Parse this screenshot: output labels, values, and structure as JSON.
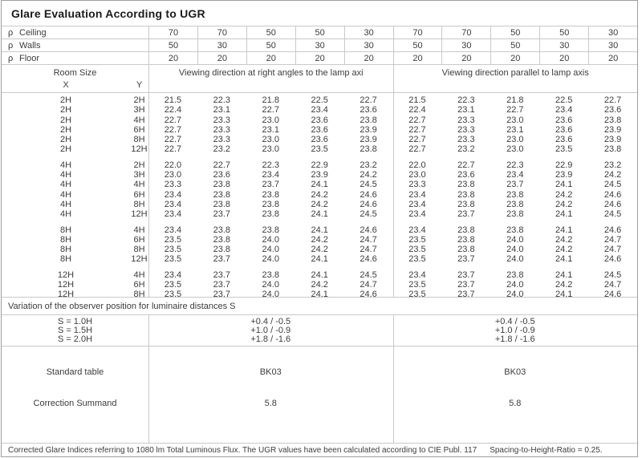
{
  "title": "Glare Evaluation According to UGR",
  "reflectances": {
    "rho": "ρ",
    "rows": [
      {
        "label": "Ceiling",
        "values": [
          "70",
          "70",
          "50",
          "50",
          "30",
          "70",
          "70",
          "50",
          "50",
          "30"
        ]
      },
      {
        "label": "Walls",
        "values": [
          "50",
          "30",
          "50",
          "30",
          "30",
          "50",
          "30",
          "50",
          "30",
          "30"
        ]
      },
      {
        "label": "Floor",
        "values": [
          "20",
          "20",
          "20",
          "20",
          "20",
          "20",
          "20",
          "20",
          "20",
          "20"
        ]
      }
    ]
  },
  "header": {
    "room_size": "Room Size",
    "x": "X",
    "y": "Y",
    "group1": "Viewing direction at right angles to the lamp axi",
    "group2": "Viewing direction parallel to lamp axis"
  },
  "ugr_blocks": [
    {
      "rows": [
        {
          "x": "2H",
          "y": "2H",
          "ra": [
            "21.5",
            "22.3",
            "21.8",
            "22.5",
            "22.7"
          ],
          "pa": [
            "21.5",
            "22.3",
            "21.8",
            "22.5",
            "22.7"
          ]
        },
        {
          "x": "2H",
          "y": "3H",
          "ra": [
            "22.4",
            "23.1",
            "22.7",
            "23.4",
            "23.6"
          ],
          "pa": [
            "22.4",
            "23.1",
            "22.7",
            "23.4",
            "23.6"
          ]
        },
        {
          "x": "2H",
          "y": "4H",
          "ra": [
            "22.7",
            "23.3",
            "23.0",
            "23.6",
            "23.8"
          ],
          "pa": [
            "22.7",
            "23.3",
            "23.0",
            "23.6",
            "23.8"
          ]
        },
        {
          "x": "2H",
          "y": "6H",
          "ra": [
            "22.7",
            "23.3",
            "23.1",
            "23.6",
            "23.9"
          ],
          "pa": [
            "22.7",
            "23.3",
            "23.1",
            "23.6",
            "23.9"
          ]
        },
        {
          "x": "2H",
          "y": "8H",
          "ra": [
            "22.7",
            "23.3",
            "23.0",
            "23.6",
            "23.9"
          ],
          "pa": [
            "22.7",
            "23.3",
            "23.0",
            "23.6",
            "23.9"
          ]
        },
        {
          "x": "2H",
          "y": "12H",
          "ra": [
            "22.7",
            "23.2",
            "23.0",
            "23.5",
            "23.8"
          ],
          "pa": [
            "22.7",
            "23.2",
            "23.0",
            "23.5",
            "23.8"
          ]
        }
      ]
    },
    {
      "rows": [
        {
          "x": "4H",
          "y": "2H",
          "ra": [
            "22.0",
            "22.7",
            "22.3",
            "22.9",
            "23.2"
          ],
          "pa": [
            "22.0",
            "22.7",
            "22.3",
            "22.9",
            "23.2"
          ]
        },
        {
          "x": "4H",
          "y": "3H",
          "ra": [
            "23.0",
            "23.6",
            "23.4",
            "23.9",
            "24.2"
          ],
          "pa": [
            "23.0",
            "23.6",
            "23.4",
            "23.9",
            "24.2"
          ]
        },
        {
          "x": "4H",
          "y": "4H",
          "ra": [
            "23.3",
            "23.8",
            "23.7",
            "24.1",
            "24.5"
          ],
          "pa": [
            "23.3",
            "23.8",
            "23.7",
            "24.1",
            "24.5"
          ]
        },
        {
          "x": "4H",
          "y": "6H",
          "ra": [
            "23.4",
            "23.8",
            "23.8",
            "24.2",
            "24.6"
          ],
          "pa": [
            "23.4",
            "23.8",
            "23.8",
            "24.2",
            "24.6"
          ]
        },
        {
          "x": "4H",
          "y": "8H",
          "ra": [
            "23.4",
            "23.8",
            "23.8",
            "24.2",
            "24.6"
          ],
          "pa": [
            "23.4",
            "23.8",
            "23.8",
            "24.2",
            "24.6"
          ]
        },
        {
          "x": "4H",
          "y": "12H",
          "ra": [
            "23.4",
            "23.7",
            "23.8",
            "24.1",
            "24.5"
          ],
          "pa": [
            "23.4",
            "23.7",
            "23.8",
            "24.1",
            "24.5"
          ]
        }
      ]
    },
    {
      "rows": [
        {
          "x": "8H",
          "y": "4H",
          "ra": [
            "23.4",
            "23.8",
            "23.8",
            "24.1",
            "24.6"
          ],
          "pa": [
            "23.4",
            "23.8",
            "23.8",
            "24.1",
            "24.6"
          ]
        },
        {
          "x": "8H",
          "y": "6H",
          "ra": [
            "23.5",
            "23.8",
            "24.0",
            "24.2",
            "24.7"
          ],
          "pa": [
            "23.5",
            "23.8",
            "24.0",
            "24.2",
            "24.7"
          ]
        },
        {
          "x": "8H",
          "y": "8H",
          "ra": [
            "23.5",
            "23.8",
            "24.0",
            "24.2",
            "24.7"
          ],
          "pa": [
            "23.5",
            "23.8",
            "24.0",
            "24.2",
            "24.7"
          ]
        },
        {
          "x": "8H",
          "y": "12H",
          "ra": [
            "23.5",
            "23.7",
            "24.0",
            "24.1",
            "24.6"
          ],
          "pa": [
            "23.5",
            "23.7",
            "24.0",
            "24.1",
            "24.6"
          ]
        }
      ]
    },
    {
      "rows": [
        {
          "x": "12H",
          "y": "4H",
          "ra": [
            "23.4",
            "23.7",
            "23.8",
            "24.1",
            "24.5"
          ],
          "pa": [
            "23.4",
            "23.7",
            "23.8",
            "24.1",
            "24.5"
          ]
        },
        {
          "x": "12H",
          "y": "6H",
          "ra": [
            "23.5",
            "23.7",
            "24.0",
            "24.2",
            "24.7"
          ],
          "pa": [
            "23.5",
            "23.7",
            "24.0",
            "24.2",
            "24.7"
          ]
        },
        {
          "x": "12H",
          "y": "8H",
          "ra": [
            "23.5",
            "23.7",
            "24.0",
            "24.1",
            "24.6"
          ],
          "pa": [
            "23.5",
            "23.7",
            "24.0",
            "24.1",
            "24.6"
          ]
        }
      ]
    }
  ],
  "variation_note": "Variation of the observer position for luminaire distances S",
  "s_rows": [
    {
      "label": "S = 1.0H",
      "value": "+0.4 / -0.5"
    },
    {
      "label": "S = 1.5H",
      "value": "+1.0 / -0.9"
    },
    {
      "label": "S = 2.0H",
      "value": "+1.8 / -1.6"
    }
  ],
  "standard_table": {
    "label": "Standard table",
    "value1": "BK03",
    "value2": "BK03"
  },
  "correction": {
    "label": "Correction Summand",
    "value1": "5.8",
    "value2": "5.8"
  },
  "footer": {
    "text": "Corrected Glare Indices referring to 1080 lm Total Luminous Flux. The UGR values have been calculated according to CIE Publ. 117",
    "ratio": "Spacing-to-Height-Ratio = 0.25."
  },
  "colors": {
    "text": "#3c3c3c",
    "border_inner": "#c9c9c9",
    "border_outer": "#9e9e9e"
  }
}
